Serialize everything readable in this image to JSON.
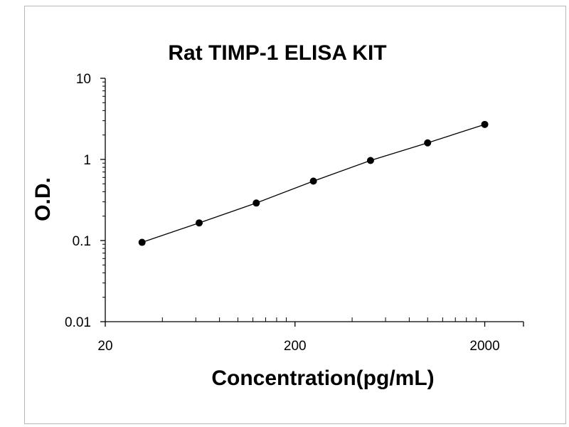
{
  "chart_data": {
    "type": "scatter",
    "title": "Rat TIMP-1 ELISA KIT",
    "xlabel": "Concentration(pg/mL)",
    "ylabel": "O.D.",
    "x_scale": "log",
    "y_scale": "log",
    "xlim": [
      20,
      3200
    ],
    "ylim": [
      0.01,
      10
    ],
    "x_ticks": [
      20,
      200,
      2000
    ],
    "x_tick_labels": [
      "20",
      "200",
      "2000"
    ],
    "y_ticks": [
      0.01,
      0.1,
      1,
      10
    ],
    "y_tick_labels": [
      "0.01",
      "0.1",
      "1",
      "10"
    ],
    "grid": false,
    "legend": "none",
    "series": [
      {
        "x": [
          31.25,
          62.5,
          125,
          250,
          500,
          1000,
          2000
        ],
        "y": [
          0.095,
          0.165,
          0.29,
          0.54,
          0.97,
          1.6,
          2.7
        ]
      }
    ],
    "colors": {
      "marker": "#000000",
      "line": "#000000",
      "axis": "#000000"
    }
  }
}
